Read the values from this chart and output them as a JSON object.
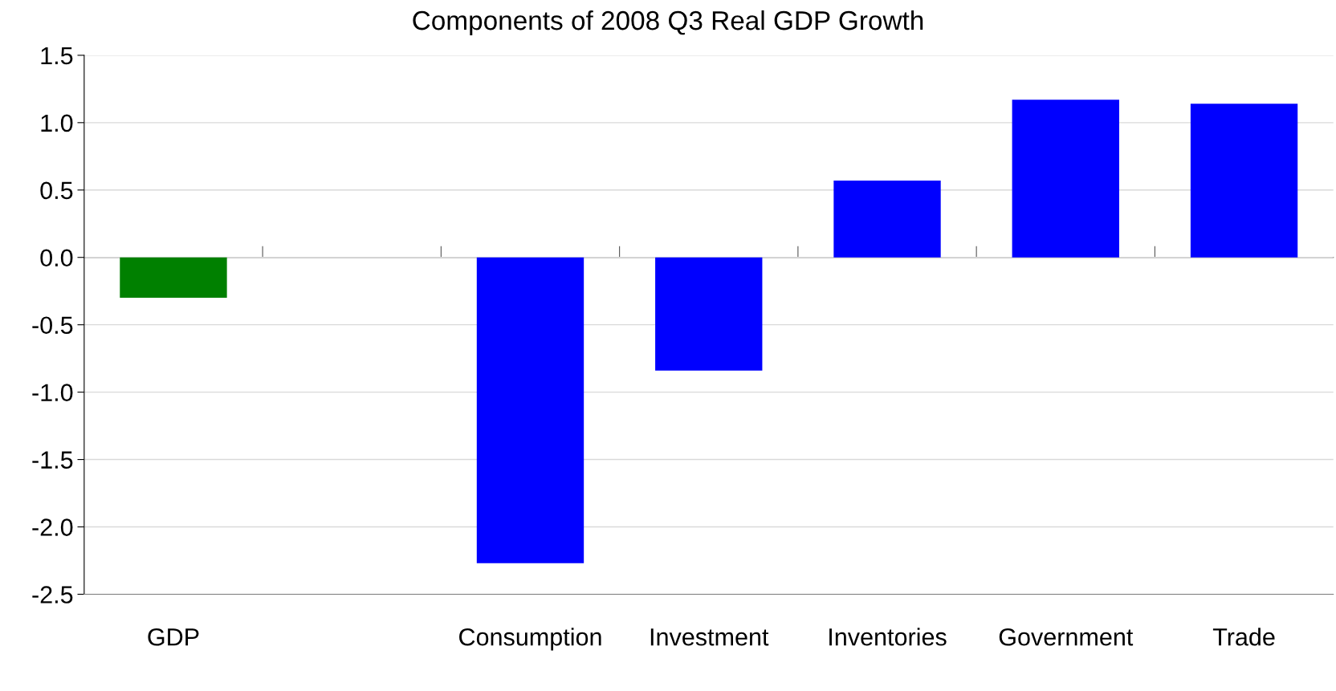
{
  "chart_data": {
    "type": "bar",
    "title": "Components of 2008 Q3 Real GDP Growth",
    "categories": [
      "GDP",
      null,
      "Consumption",
      "Investment",
      "Inventories",
      "Government",
      "Trade"
    ],
    "values": [
      -0.3,
      null,
      -2.27,
      -0.84,
      0.57,
      1.17,
      1.14
    ],
    "colors": [
      "#008000",
      "#0000ff",
      "#0000ff",
      "#0000ff",
      "#0000ff",
      "#0000ff",
      "#0000ff"
    ],
    "ylim": [
      -2.5,
      1.5
    ],
    "yticks": [
      {
        "value": -2.5,
        "label": "-2.5"
      },
      {
        "value": -2.0,
        "label": "-2.0"
      },
      {
        "value": -1.5,
        "label": "-1.5"
      },
      {
        "value": -1.0,
        "label": "-1.0"
      },
      {
        "value": -0.5,
        "label": "-0.5"
      },
      {
        "value": 0.0,
        "label": "0.0"
      },
      {
        "value": 0.5,
        "label": "0.5"
      },
      {
        "value": 1.0,
        "label": "1.0"
      },
      {
        "value": 1.5,
        "label": "1.5"
      }
    ],
    "grid": "y",
    "legend": false
  }
}
